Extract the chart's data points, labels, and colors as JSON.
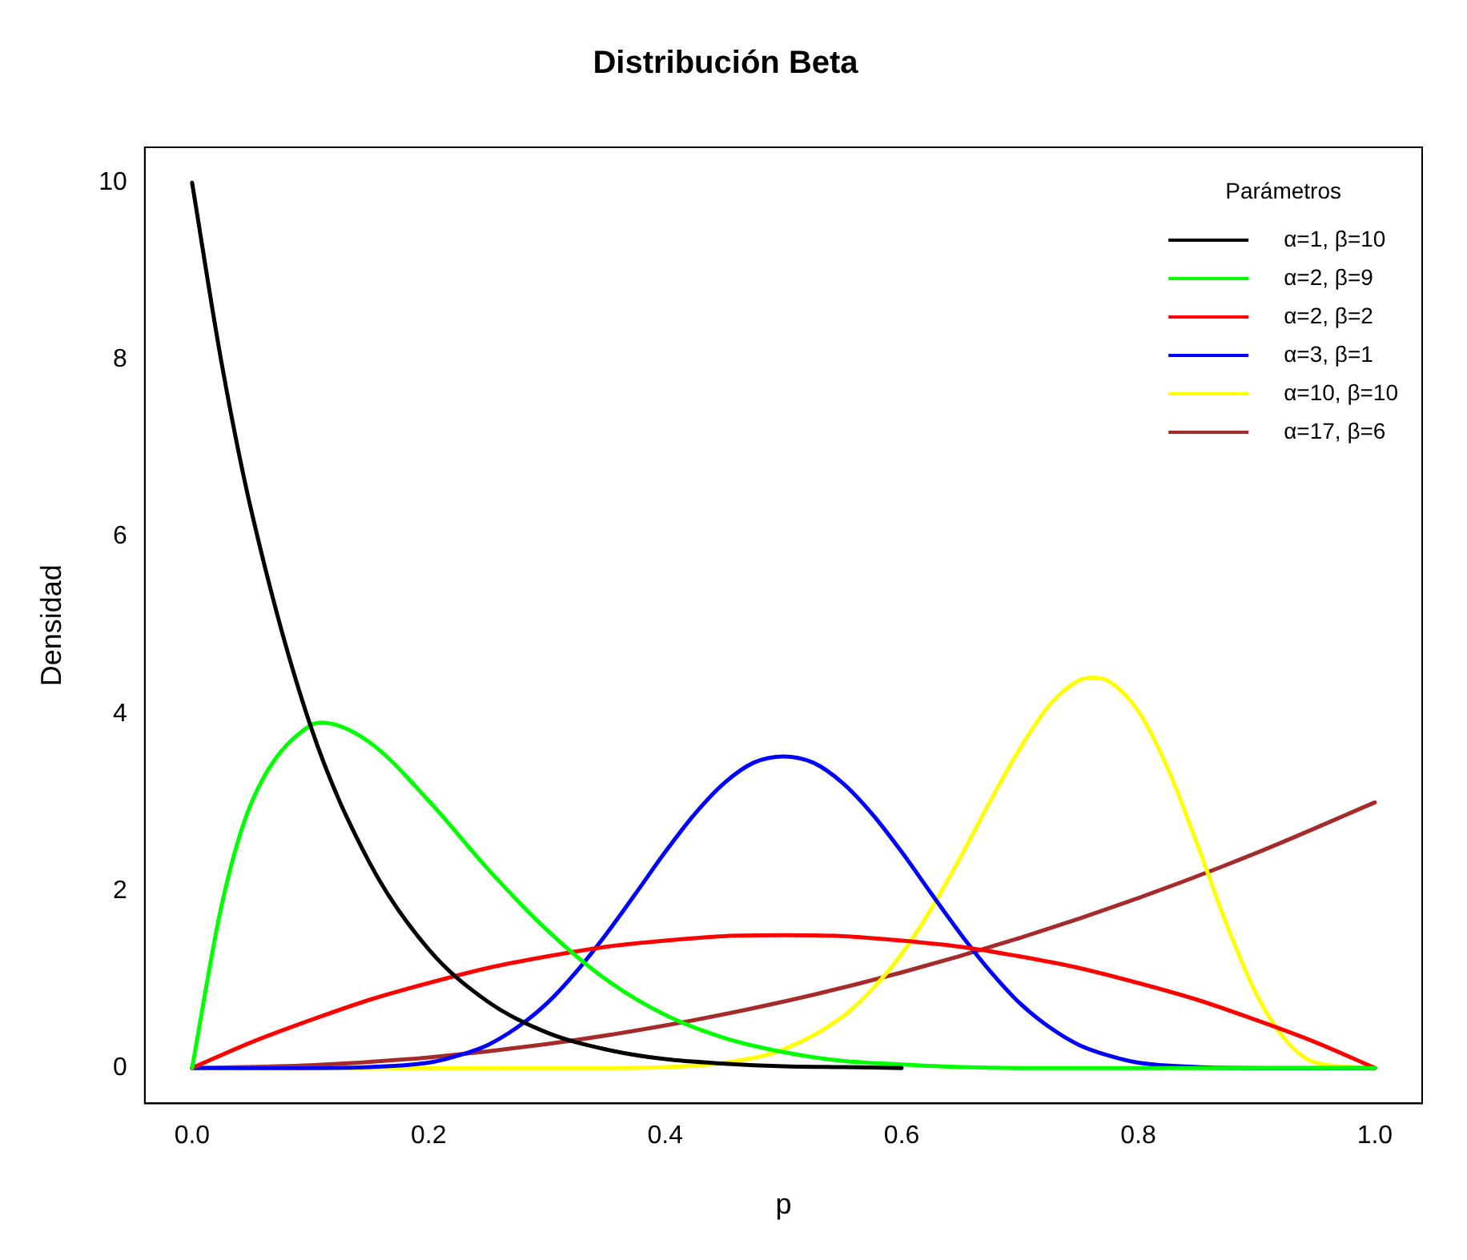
{
  "chart_data": {
    "type": "line",
    "title": "Distribución Beta",
    "xlabel": "p",
    "ylabel": "Densidad",
    "legend_title": "Parámetros",
    "legend": "top right",
    "grid": false,
    "marker": "none",
    "line_style": "solid",
    "xlim": [
      -0.04,
      1.04
    ],
    "ylim": [
      -0.4,
      10.4
    ],
    "xticks": [
      {
        "value": 0,
        "label": "0.0"
      },
      {
        "value": 0.2,
        "label": "0.2"
      },
      {
        "value": 0.4,
        "label": "0.4"
      },
      {
        "value": 0.6,
        "label": "0.6"
      },
      {
        "value": 0.8,
        "label": "0.8"
      },
      {
        "value": 1,
        "label": "1.0"
      }
    ],
    "yticks": [
      0,
      2,
      4,
      6,
      8,
      10
    ],
    "series": [
      {
        "name": "α=1, β=10",
        "color": "#000000",
        "x": [
          0,
          0.025,
          0.05,
          0.1,
          0.15,
          0.2,
          0.25,
          0.3,
          0.35,
          0.4,
          0.45,
          0.5,
          0.55,
          0.6
        ],
        "values": [
          10,
          7.96,
          6.3,
          3.87,
          2.32,
          1.34,
          0.75,
          0.4,
          0.21,
          0.1,
          0.05,
          0.02,
          0.01,
          0
        ]
      },
      {
        "name": "α=2, β=9",
        "color": "#00ff00",
        "x": [
          0,
          0.025,
          0.05,
          0.1,
          0.11,
          0.15,
          0.2,
          0.25,
          0.3,
          0.35,
          0.4,
          0.45,
          0.5,
          0.55,
          0.6,
          0.65,
          0.7,
          0.8,
          0.9,
          1
        ],
        "values": [
          0,
          1.84,
          2.99,
          3.87,
          3.9,
          3.68,
          3.02,
          2.25,
          1.56,
          1.0,
          0.6,
          0.34,
          0.18,
          0.08,
          0.04,
          0.01,
          0,
          0,
          0,
          0
        ]
      },
      {
        "name": "α=2, β=2",
        "color": "#ff0000",
        "x": [
          0,
          0.05,
          0.1,
          0.15,
          0.2,
          0.25,
          0.3,
          0.35,
          0.4,
          0.45,
          0.5,
          0.55,
          0.6,
          0.65,
          0.7,
          0.75,
          0.8,
          0.85,
          0.9,
          0.95,
          1
        ],
        "values": [
          0,
          0.29,
          0.54,
          0.77,
          0.96,
          1.13,
          1.26,
          1.37,
          1.44,
          1.49,
          1.5,
          1.49,
          1.44,
          1.37,
          1.26,
          1.13,
          0.96,
          0.77,
          0.54,
          0.29,
          0
        ]
      },
      {
        "name": "α=3, β=1",
        "color": "#0000ff",
        "x": [
          0,
          0.1,
          0.15,
          0.2,
          0.225,
          0.25,
          0.275,
          0.3,
          0.325,
          0.35,
          0.375,
          0.4,
          0.425,
          0.45,
          0.475,
          0.5,
          0.525,
          0.55,
          0.575,
          0.6,
          0.625,
          0.65,
          0.675,
          0.7,
          0.725,
          0.75,
          0.775,
          0.8,
          0.85,
          0.9,
          1
        ],
        "values": [
          0,
          0,
          0.01,
          0.06,
          0.14,
          0.26,
          0.46,
          0.73,
          1.09,
          1.51,
          1.97,
          2.44,
          2.87,
          3.22,
          3.45,
          3.52,
          3.45,
          3.22,
          2.87,
          2.44,
          1.97,
          1.51,
          1.09,
          0.73,
          0.46,
          0.26,
          0.14,
          0.06,
          0.01,
          0,
          0
        ]
      },
      {
        "name": "α=10, β=10",
        "color": "#ffff00",
        "x": [
          0,
          0.35,
          0.4,
          0.45,
          0.5,
          0.55,
          0.575,
          0.6,
          0.625,
          0.65,
          0.675,
          0.7,
          0.725,
          0.75,
          0.762,
          0.775,
          0.8,
          0.825,
          0.85,
          0.875,
          0.9,
          0.925,
          0.95,
          1
        ],
        "values": [
          0,
          0,
          0.01,
          0.06,
          0.21,
          0.58,
          0.89,
          1.29,
          1.8,
          2.39,
          3.02,
          3.61,
          4.1,
          4.38,
          4.41,
          4.37,
          4.03,
          3.38,
          2.52,
          1.61,
          0.83,
          0.31,
          0.06,
          0
        ]
      },
      {
        "name": "α=17, β=6",
        "color": "#a52a2a",
        "x": [
          0,
          0.1,
          0.2,
          0.3,
          0.4,
          0.5,
          0.6,
          0.7,
          0.8,
          0.9,
          1
        ],
        "values": [
          0,
          0.03,
          0.12,
          0.27,
          0.48,
          0.75,
          1.08,
          1.47,
          1.92,
          2.43,
          3
        ]
      }
    ]
  }
}
